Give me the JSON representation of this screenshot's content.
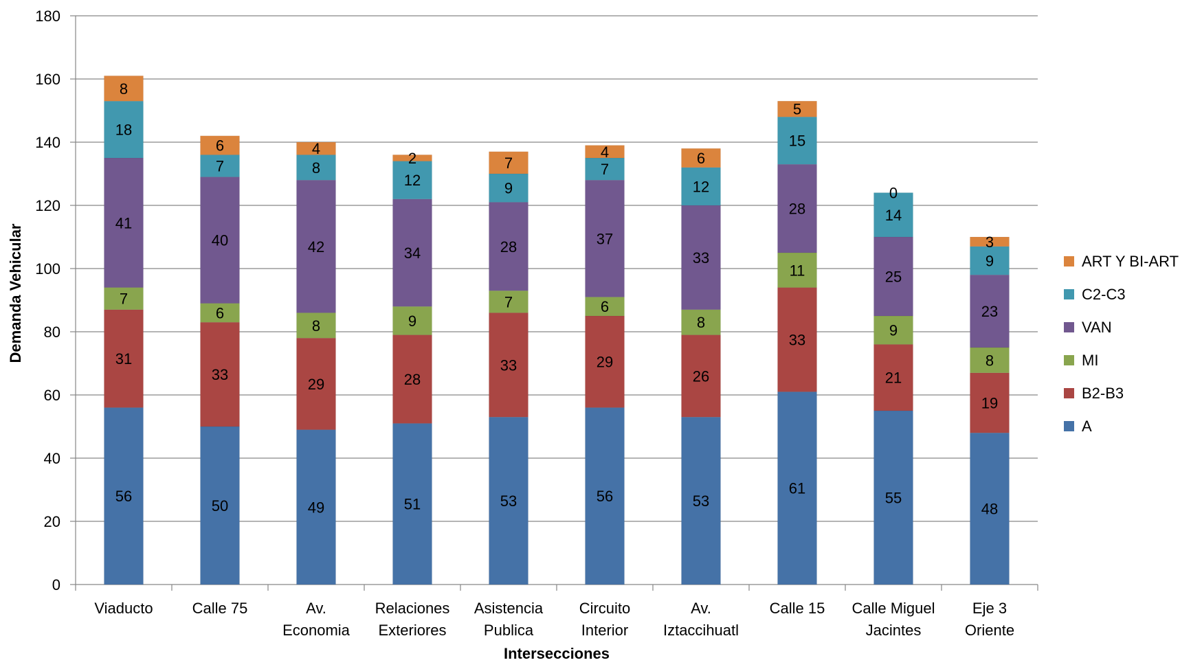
{
  "chart_data": {
    "type": "bar",
    "stacked": true,
    "title": "",
    "xlabel": "Intersecciones",
    "ylabel": "Demanda Vehicular",
    "ylim": [
      0,
      180
    ],
    "ytick_step": 20,
    "grid": true,
    "legend": "right",
    "categories": [
      [
        "Viaducto"
      ],
      [
        "Calle 75"
      ],
      [
        "Av.",
        "Economia"
      ],
      [
        "Relaciones",
        "Exteriores"
      ],
      [
        "Asistencia",
        "Publica"
      ],
      [
        "Circuito",
        "Interior"
      ],
      [
        "Av.",
        "Iztaccihuatl"
      ],
      [
        "Calle 15"
      ],
      [
        "Calle Miguel",
        "Jacintes"
      ],
      [
        "Eje 3",
        "Oriente"
      ]
    ],
    "series": [
      {
        "name": "A",
        "color": "#4572A7",
        "values": [
          56,
          50,
          49,
          51,
          53,
          56,
          53,
          61,
          55,
          48
        ]
      },
      {
        "name": "B2-B3",
        "color": "#AA4643",
        "values": [
          31,
          33,
          29,
          28,
          33,
          29,
          26,
          33,
          21,
          19
        ]
      },
      {
        "name": "MI",
        "color": "#89A54E",
        "values": [
          7,
          6,
          8,
          9,
          7,
          6,
          8,
          11,
          9,
          8
        ]
      },
      {
        "name": "VAN",
        "color": "#71588F",
        "values": [
          41,
          40,
          42,
          34,
          28,
          37,
          33,
          28,
          25,
          23
        ]
      },
      {
        "name": "C2-C3",
        "color": "#4198AF",
        "values": [
          18,
          7,
          8,
          12,
          9,
          7,
          12,
          15,
          14,
          9
        ]
      },
      {
        "name": "ART Y BI-ART",
        "color": "#DB843D",
        "values": [
          8,
          6,
          4,
          2,
          7,
          4,
          6,
          5,
          0,
          3
        ]
      }
    ]
  }
}
